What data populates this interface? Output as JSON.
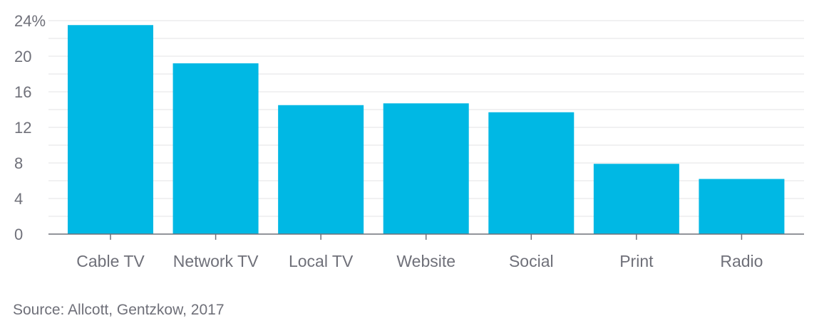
{
  "chart_data": {
    "type": "bar",
    "categories": [
      "Cable TV",
      "Network TV",
      "Local TV",
      "Website",
      "Social",
      "Print",
      "Radio"
    ],
    "values": [
      23.5,
      19.2,
      14.5,
      14.7,
      13.7,
      7.9,
      6.2
    ],
    "ylim": [
      0,
      24
    ],
    "y_ticks": [
      0,
      4,
      8,
      12,
      16,
      20,
      24
    ],
    "y_tick_labels": [
      "0",
      "4",
      "8",
      "12",
      "16",
      "20",
      "24%"
    ],
    "grid": true,
    "bar_color": "#00b8e4"
  },
  "source": "Source: Allcott, Gentzkow, 2017"
}
